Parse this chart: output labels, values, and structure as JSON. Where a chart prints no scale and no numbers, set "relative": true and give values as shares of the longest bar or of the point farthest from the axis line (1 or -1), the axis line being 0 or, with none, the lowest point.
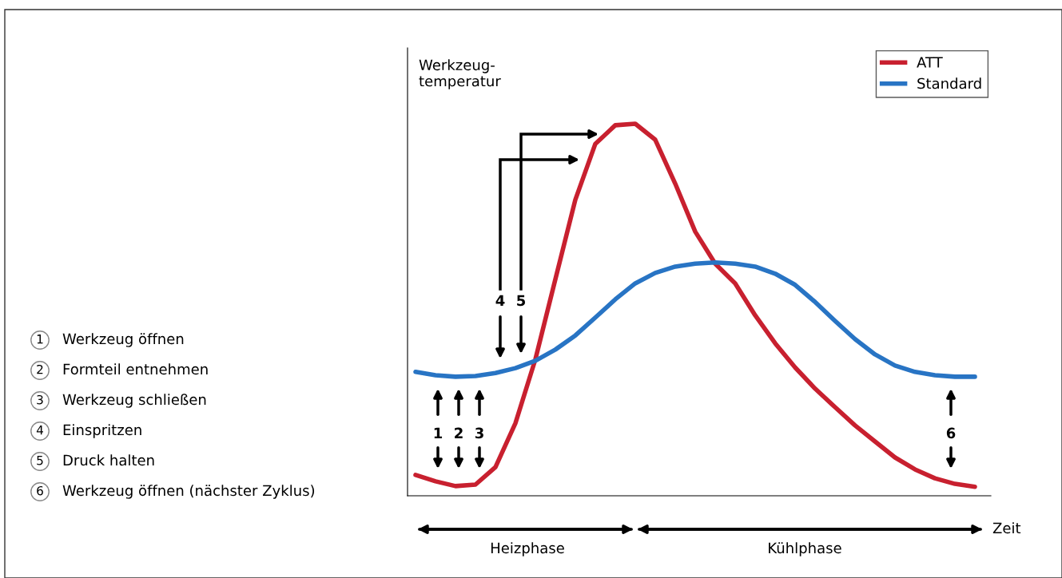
{
  "chart_data": {
    "type": "line",
    "relative": true,
    "ylabel": "Werkzeug-\ntemperatur",
    "categories": [
      null,
      null,
      null,
      null,
      null,
      null,
      null,
      null,
      null,
      null,
      null,
      null,
      null,
      null,
      null,
      null,
      null,
      null,
      null,
      null,
      null,
      null,
      null,
      null,
      null,
      null,
      null,
      null,
      null
    ],
    "series": [
      {
        "name": "ATT",
        "color": "#c8202f",
        "values": [
          0.056,
          0.039,
          0.026,
          0.03,
          0.077,
          0.195,
          0.367,
          0.582,
          0.796,
          0.946,
          0.996,
          1.0,
          0.957,
          0.839,
          0.71,
          0.624,
          0.571,
          0.485,
          0.41,
          0.345,
          0.288,
          0.238,
          0.189,
          0.146,
          0.103,
          0.071,
          0.047,
          0.032,
          0.024
        ]
      },
      {
        "name": "Standard",
        "color": "#2874c4",
        "values": [
          0.333,
          0.324,
          0.32,
          0.322,
          0.33,
          0.343,
          0.363,
          0.393,
          0.431,
          0.479,
          0.528,
          0.571,
          0.599,
          0.616,
          0.624,
          0.627,
          0.624,
          0.616,
          0.597,
          0.567,
          0.521,
          0.47,
          0.421,
          0.38,
          0.35,
          0.333,
          0.324,
          0.32,
          0.32
        ]
      }
    ],
    "legend": "top right",
    "marker": "none",
    "line_style": "solid",
    "annotations": [
      "1",
      "2",
      "3",
      "4",
      "5",
      "6",
      "1",
      "2",
      "3",
      "4",
      "5",
      "6",
      "Werkzeug öffnen",
      "Formteil entnehmen",
      "Werkzeug schließen",
      "Einspritzen",
      "Druck halten",
      "Werkzeug öffnen (nächster Zyklus)",
      "Heizphase",
      "Kühlphase",
      "Zeit"
    ]
  }
}
